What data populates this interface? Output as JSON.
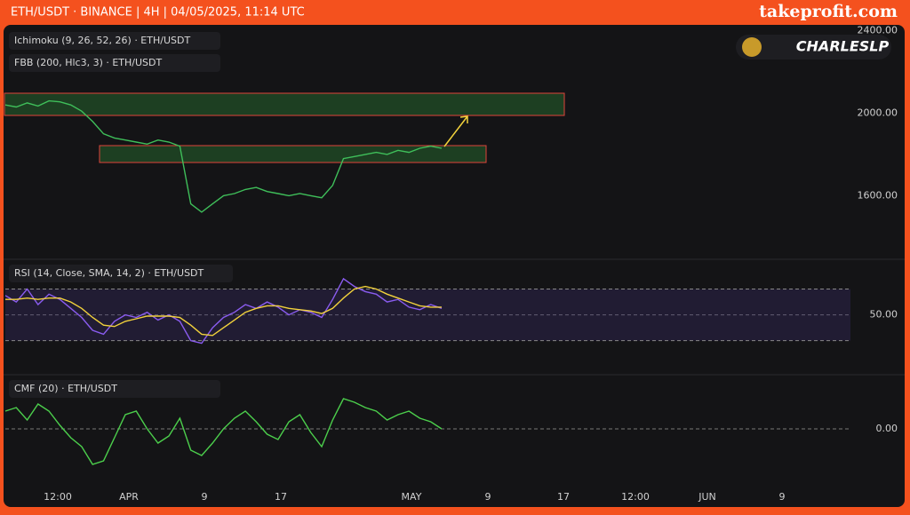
{
  "header": {
    "symbol": "ETH/USDT · BINANCE | 4H | 04/05/2025, 11:14 UTC",
    "brand": "takeprofit.com",
    "watermark": "CHARLESLP"
  },
  "x_labels": [
    "12:00",
    "APR",
    "9",
    "17",
    "MAY",
    "9",
    "17",
    "12:00",
    "JUN",
    "9"
  ],
  "chart_data": [
    {
      "type": "line",
      "legend_texts": [
        "Ichimoku (9, 26, 52, 26) · ETH/USDT",
        "FBB (200, Hlc3, 3) · ETH/USDT"
      ],
      "color": "#3fbf5a",
      "values": [
        2040,
        2030,
        2050,
        2035,
        2060,
        2055,
        2040,
        2010,
        1960,
        1900,
        1880,
        1870,
        1860,
        1850,
        1870,
        1860,
        1840,
        1560,
        1520,
        1560,
        1600,
        1610,
        1630,
        1640,
        1620,
        1610,
        1600,
        1610,
        1600,
        1590,
        1650,
        1780,
        1790,
        1800,
        1810,
        1800,
        1820,
        1810,
        1830,
        1840,
        1830
      ],
      "ylim": [
        1300,
        2420
      ],
      "yticks": [
        {
          "value": 1600,
          "label": "1600.00"
        },
        {
          "value": 2000,
          "label": "2000.00"
        },
        {
          "value": 2400,
          "label": "2400.00"
        }
      ]
    },
    {
      "type": "line",
      "legend_texts": [
        "RSI (14, Close, SMA, 14, 2) · ETH/USDT"
      ],
      "color": "#8a5cf0",
      "signal_color": "#f2d23c",
      "values": [
        65,
        60,
        70,
        58,
        66,
        62,
        55,
        48,
        38,
        35,
        45,
        50,
        48,
        52,
        46,
        50,
        45,
        30,
        28,
        40,
        48,
        52,
        58,
        55,
        60,
        56,
        50,
        54,
        52,
        48,
        62,
        78,
        72,
        68,
        66,
        60,
        62,
        56,
        54,
        58,
        55
      ],
      "signal": [
        62,
        62,
        63,
        62,
        63,
        63,
        60,
        55,
        48,
        42,
        41,
        45,
        47,
        49,
        49,
        49,
        48,
        42,
        35,
        34,
        40,
        46,
        52,
        55,
        57,
        57,
        55,
        54,
        53,
        51,
        55,
        63,
        70,
        72,
        70,
        66,
        63,
        60,
        57,
        56,
        56
      ],
      "bands": [
        30,
        70
      ],
      "ylim": [
        5,
        91
      ],
      "yticks": [
        {
          "value": 50,
          "label": "50.00"
        }
      ]
    },
    {
      "type": "line",
      "legend_texts": [
        "CMF (20) · ETH/USDT"
      ],
      "color": "#4ccf4c",
      "values": [
        0.1,
        0.12,
        0.05,
        0.14,
        0.1,
        0.02,
        -0.05,
        -0.1,
        -0.2,
        -0.18,
        -0.05,
        0.08,
        0.1,
        0.0,
        -0.08,
        -0.04,
        0.06,
        -0.12,
        -0.15,
        -0.08,
        0.0,
        0.06,
        0.1,
        0.04,
        -0.03,
        -0.06,
        0.04,
        0.08,
        -0.02,
        -0.1,
        0.05,
        0.17,
        0.15,
        0.12,
        0.1,
        0.05,
        0.08,
        0.1,
        0.06,
        0.04,
        0.0
      ],
      "ylim": [
        -0.31,
        0.29
      ],
      "yticks": [
        {
          "value": 0,
          "label": "0.00"
        }
      ]
    }
  ]
}
